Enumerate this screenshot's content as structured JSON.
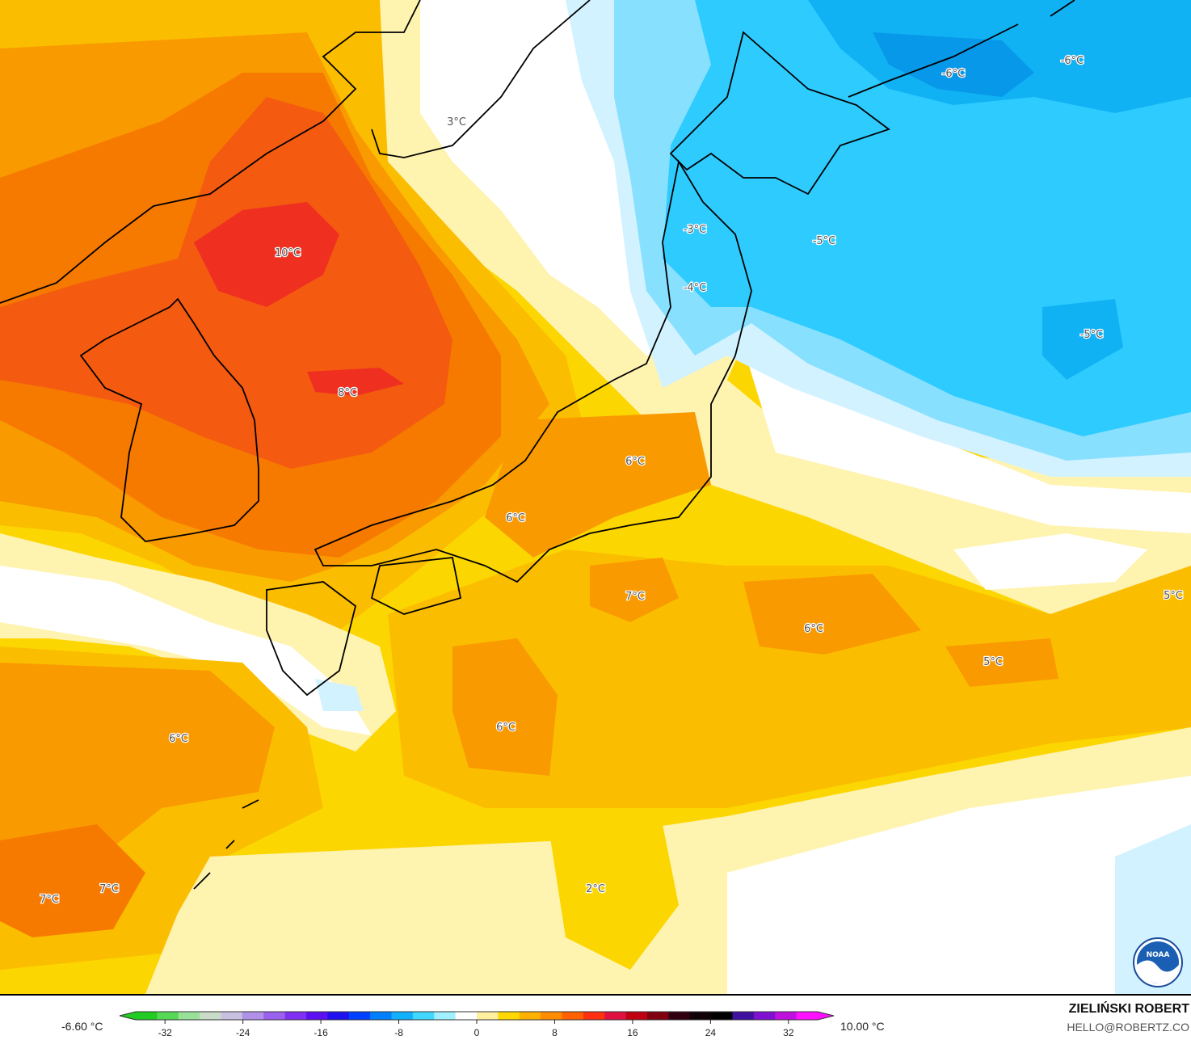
{
  "map": {
    "type": "temperature anomaly contour map",
    "colors": {
      "pale_yellow": "#fff3b0",
      "yellow": "#fcd600",
      "yellow_orange": "#fbbd00",
      "orange": "#f99a00",
      "dark_orange": "#f77a00",
      "red_orange": "#f45a10",
      "red": "#ef3020",
      "white": "#ffffff",
      "pale_blue": "#d2f2ff",
      "light_blue": "#88e0ff",
      "cyan": "#2ecbff",
      "blue": "#10b2f4",
      "deep_blue": "#0898ea"
    },
    "labels": [
      "3°C",
      "10°C",
      "8°C",
      "-3°C",
      "-4°C",
      "-5°C",
      "-6°C",
      "-6°C",
      "-5°C",
      "6°C",
      "6°C",
      "7°C",
      "6°C",
      "5°C",
      "5°C",
      "6°C",
      "6°C",
      "7°C",
      "7°C",
      "2°C"
    ]
  },
  "legend": {
    "min_label": "-6.60 °C",
    "max_label": "10.00 °C",
    "ticks": [
      "-32",
      "-24",
      "-16",
      "-8",
      "0",
      "8",
      "16",
      "24",
      "32"
    ],
    "tick_values": [
      -32,
      -24,
      -16,
      -8,
      0,
      8,
      16,
      24,
      32
    ],
    "range": [
      -35,
      35
    ],
    "colors": [
      "#22cc22",
      "#55d855",
      "#99e099",
      "#c8dcc8",
      "#c8c0e0",
      "#b090e8",
      "#9a60ee",
      "#8030f0",
      "#5a10f0",
      "#2010f0",
      "#0040ff",
      "#0080ff",
      "#10b0ff",
      "#40d8ff",
      "#a0f0ff",
      "#ffffff",
      "#fff0a0",
      "#ffd800",
      "#ffb000",
      "#ff8c00",
      "#ff6000",
      "#ff3010",
      "#e01040",
      "#c00010",
      "#800010",
      "#300010",
      "#100008",
      "#000000",
      "#4010a0",
      "#8010d0",
      "#c010e0",
      "#ff10ff"
    ]
  },
  "credit": {
    "author": "ZIELIŃSKI ROBERT",
    "email": "HELLO@ROBERTZ.CO",
    "logo_text": "NOAA"
  }
}
